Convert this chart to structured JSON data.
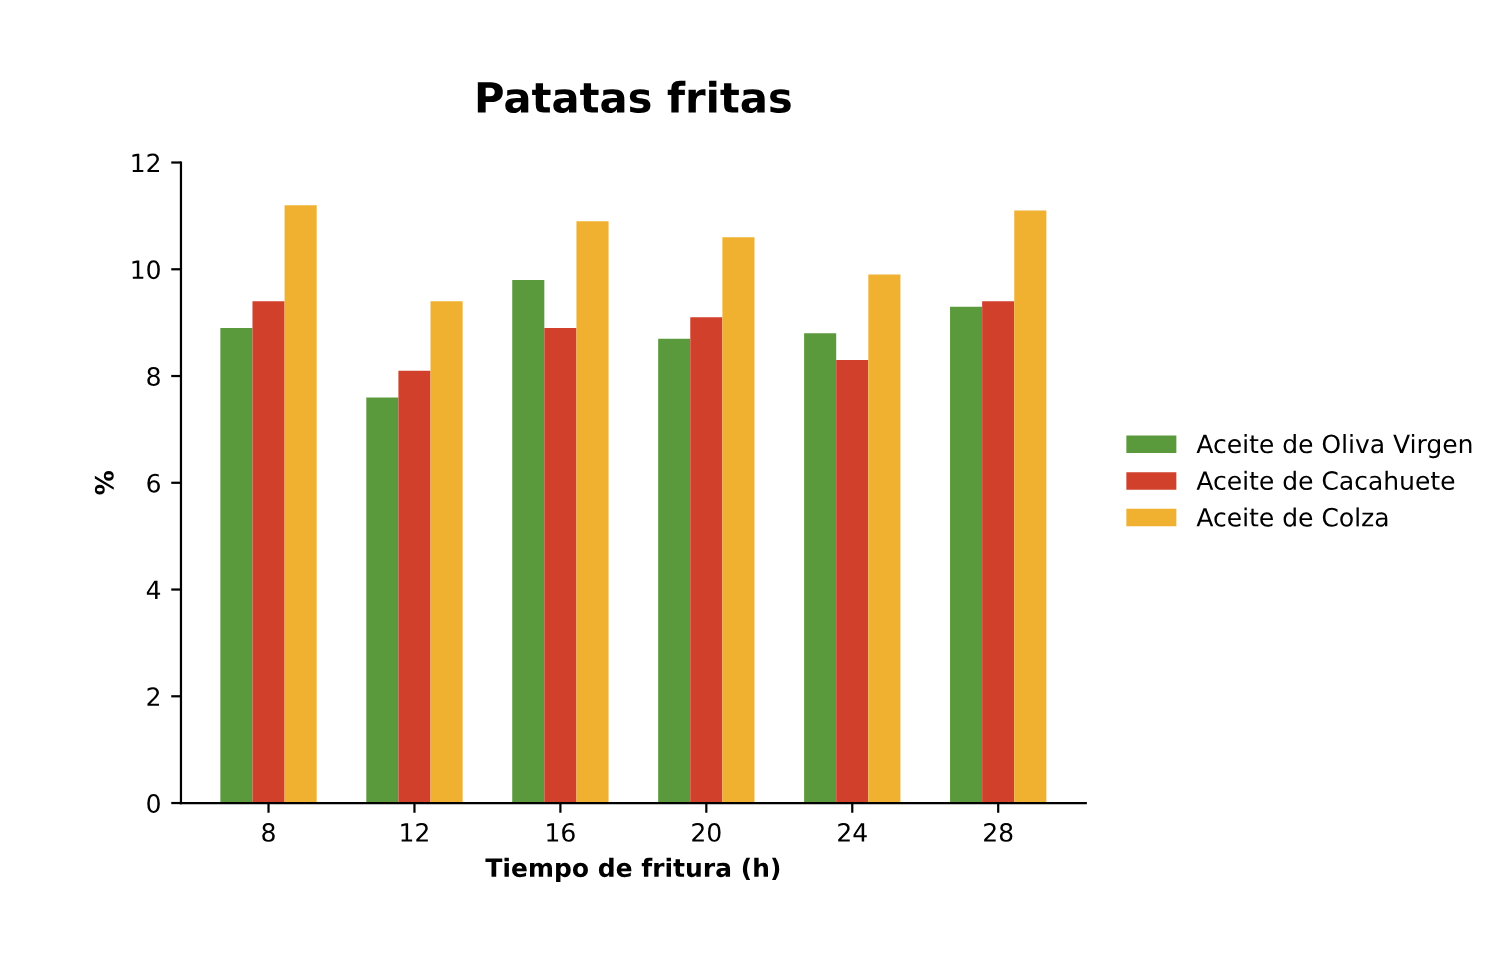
{
  "chart_data": {
    "type": "bar",
    "title": "Patatas fritas",
    "xlabel": "Tiempo de fritura (h)",
    "ylabel": "%",
    "categories": [
      "8",
      "12",
      "16",
      "20",
      "24",
      "28"
    ],
    "series": [
      {
        "name": "Aceite de Oliva Virgen",
        "color": "#5a9a3c",
        "values": [
          8.9,
          7.6,
          9.8,
          8.7,
          8.8,
          9.3
        ]
      },
      {
        "name": "Aceite de Cacahuete",
        "color": "#d0402a",
        "values": [
          9.4,
          8.1,
          8.9,
          9.1,
          8.3,
          9.4
        ]
      },
      {
        "name": "Aceite de Colza",
        "color": "#f0b030",
        "values": [
          11.2,
          9.4,
          10.9,
          10.6,
          9.9,
          11.1
        ]
      }
    ],
    "ylim": [
      0,
      12
    ],
    "yticks": [
      0,
      2,
      4,
      6,
      8,
      10,
      12
    ],
    "grid": false,
    "legend": "right"
  }
}
